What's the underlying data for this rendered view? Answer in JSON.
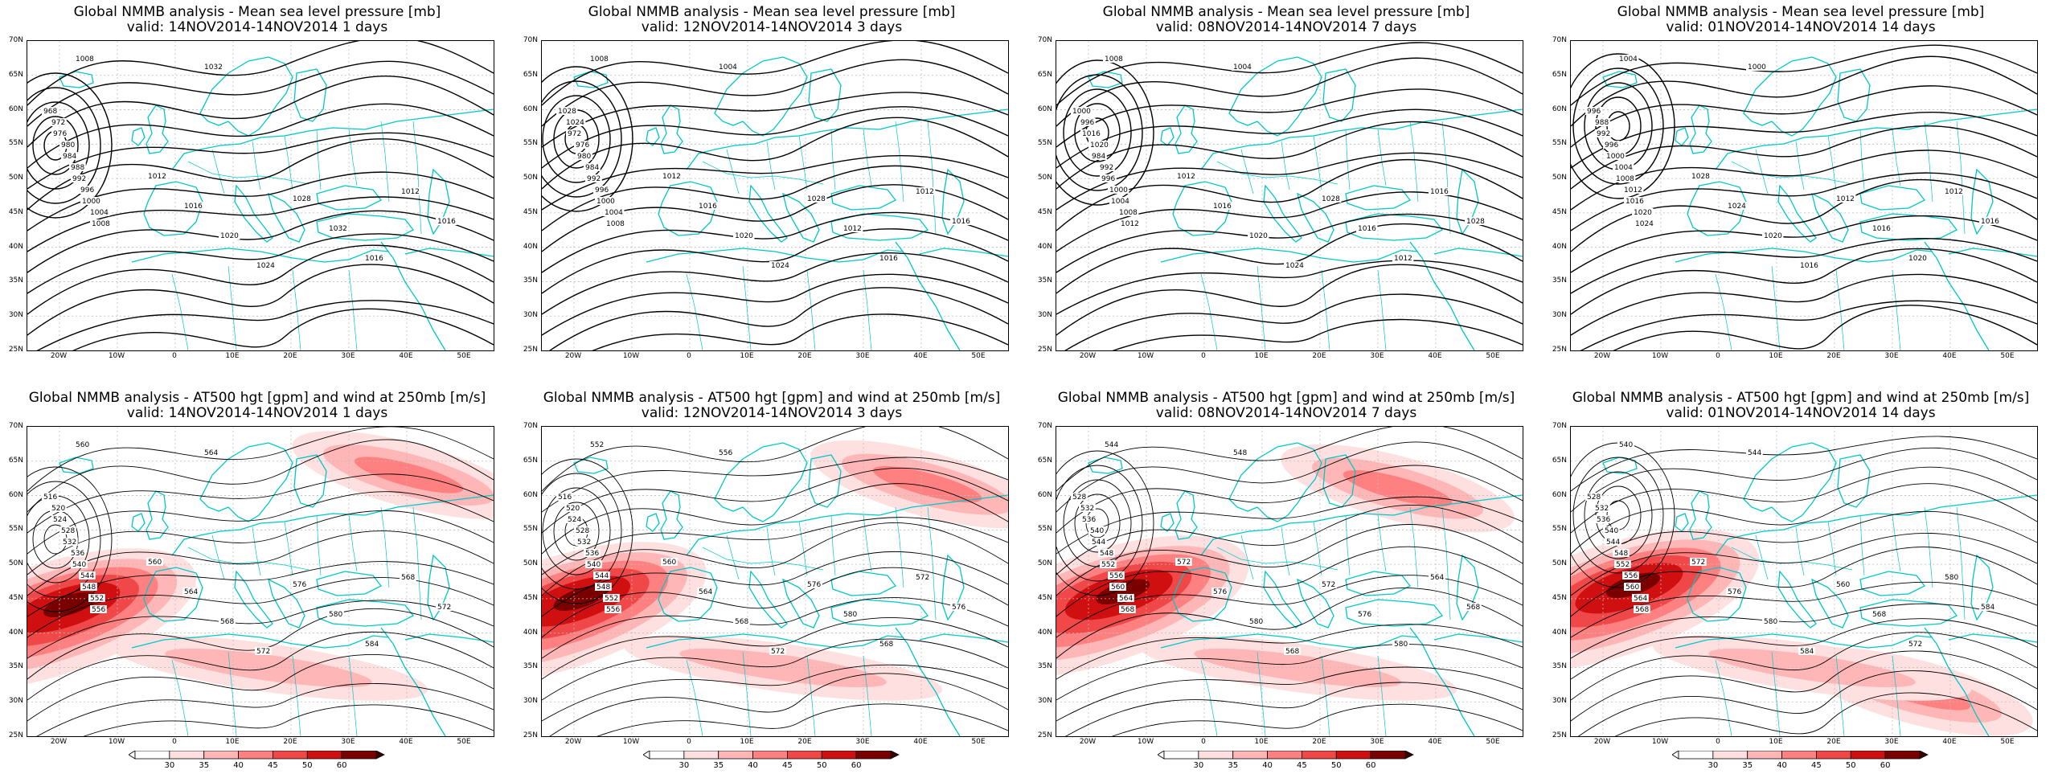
{
  "panels": [
    {
      "title": "Global NMMB analysis - Mean sea level pressure [mb]",
      "valid": "valid: 14NOV2014-14NOV2014  1 days",
      "kind": "mslp",
      "labels": [
        "1008",
        "1032",
        "968",
        "972",
        "976",
        "980",
        "984",
        "988",
        "992",
        "996",
        "1000",
        "1004",
        "1008",
        "1012",
        "1016",
        "1020",
        "1024",
        "1028",
        "1032",
        "1016",
        "1012",
        "1016"
      ]
    },
    {
      "title": "Global NMMB analysis - Mean sea level pressure [mb]",
      "valid": "valid: 12NOV2014-14NOV2014  3 days",
      "kind": "mslp",
      "labels": [
        "1008",
        "1004",
        "1028",
        "1024",
        "972",
        "976",
        "980",
        "984",
        "992",
        "996",
        "1000",
        "1004",
        "1008",
        "1012",
        "1016",
        "1020",
        "1024",
        "1028",
        "1012",
        "1016",
        "1012",
        "1016"
      ]
    },
    {
      "title": "Global NMMB analysis - Mean sea level pressure [mb]",
      "valid": "valid: 08NOV2014-14NOV2014  7 days",
      "kind": "mslp",
      "labels": [
        "1008",
        "1004",
        "1000",
        "996",
        "1016",
        "1020",
        "984",
        "992",
        "996",
        "1000",
        "1004",
        "1008",
        "1012",
        "1012",
        "1016",
        "1020",
        "1024",
        "1028",
        "1016",
        "1012",
        "1016",
        "1028"
      ]
    },
    {
      "title": "Global NMMB analysis - Mean sea level pressure [mb]",
      "valid": "valid: 01NOV2014-14NOV2014  14 days",
      "kind": "mslp",
      "labels": [
        "1004",
        "1000",
        "996",
        "988",
        "992",
        "996",
        "1000",
        "1004",
        "1008",
        "1012",
        "1016",
        "1020",
        "1024",
        "1028",
        "1024",
        "1020",
        "1016",
        "1012",
        "1016",
        "1020",
        "1012",
        "1016"
      ]
    },
    {
      "title": "Global NMMB analysis - AT500 hgt [gpm] and wind at 250mb [m/s]",
      "valid": "valid: 14NOV2014-14NOV2014  1 days",
      "kind": "z500",
      "labels": [
        "560",
        "564",
        "516",
        "520",
        "524",
        "528",
        "532",
        "536",
        "540",
        "544",
        "548",
        "552",
        "556",
        "560",
        "564",
        "568",
        "572",
        "576",
        "580",
        "584",
        "568",
        "572"
      ]
    },
    {
      "title": "Global NMMB analysis - AT500 hgt [gpm] and wind at 250mb [m/s]",
      "valid": "valid: 12NOV2014-14NOV2014  3 days",
      "kind": "z500",
      "labels": [
        "552",
        "556",
        "516",
        "520",
        "524",
        "528",
        "532",
        "536",
        "540",
        "544",
        "548",
        "552",
        "556",
        "560",
        "564",
        "568",
        "572",
        "576",
        "580",
        "568",
        "572",
        "576"
      ]
    },
    {
      "title": "Global NMMB analysis - AT500 hgt [gpm] and wind at 250mb [m/s]",
      "valid": "valid: 08NOV2014-14NOV2014  7 days",
      "kind": "z500",
      "labels": [
        "544",
        "548",
        "528",
        "532",
        "536",
        "540",
        "544",
        "548",
        "552",
        "556",
        "560",
        "564",
        "568",
        "572",
        "576",
        "580",
        "568",
        "572",
        "576",
        "580",
        "564",
        "568"
      ]
    },
    {
      "title": "Global NMMB analysis - AT500 hgt [gpm] and wind at 250mb [m/s]",
      "valid": "valid: 01NOV2014-14NOV2014  14 days",
      "kind": "z500",
      "labels": [
        "540",
        "544",
        "528",
        "532",
        "536",
        "540",
        "544",
        "548",
        "552",
        "556",
        "560",
        "564",
        "568",
        "572",
        "576",
        "580",
        "584",
        "560",
        "568",
        "572",
        "580",
        "584"
      ]
    }
  ],
  "axes": {
    "lat_labels": [
      "70N",
      "65N",
      "60N",
      "55N",
      "50N",
      "45N",
      "40N",
      "35N",
      "30N",
      "25N"
    ],
    "lon_labels": [
      "20W",
      "10W",
      "0",
      "10E",
      "20E",
      "30E",
      "40E",
      "50E"
    ]
  },
  "colorbar": {
    "ticks": [
      "30",
      "35",
      "40",
      "45",
      "50",
      "60"
    ],
    "colors": [
      "#ffe0e0",
      "#ffb6b6",
      "#ff8080",
      "#f04848",
      "#d01010",
      "#7a0000"
    ]
  },
  "colors": {
    "coast": "#00c8c8",
    "contour": "#000000",
    "grid": "#bbbbbb"
  }
}
